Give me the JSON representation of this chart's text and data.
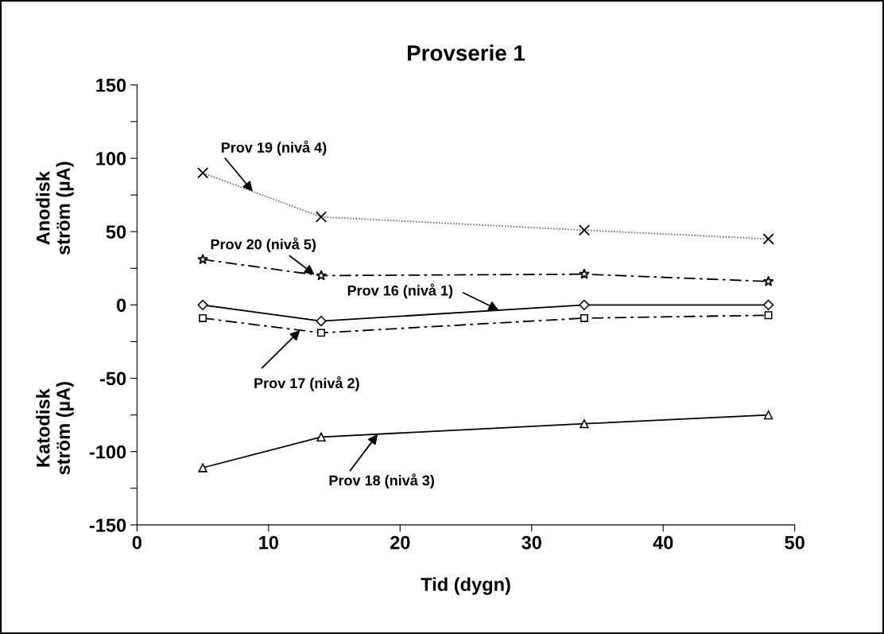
{
  "chart_data": {
    "type": "line",
    "title": "Provserie 1",
    "xlabel": "Tid (dygn)",
    "annotations": [
      "Anodisk\nström (µA)",
      "Katodisk\nström (µA)"
    ],
    "x": [
      5,
      14,
      34,
      48
    ],
    "series": [
      {
        "name": "Prov 16 (nivå 1)",
        "color": "#000000",
        "values": [
          0,
          -11,
          0,
          0
        ],
        "marker": "diamond",
        "line_style": "solid"
      },
      {
        "name": "Prov 17 (nivå 2)",
        "color": "#000000",
        "values": [
          -9,
          -19,
          -9,
          -7
        ],
        "marker": "square",
        "line_style": "dashed"
      },
      {
        "name": "Prov 18 (nivå 3)",
        "color": "#000000",
        "values": [
          -111,
          -90,
          -81,
          -75
        ],
        "marker": "triangle",
        "line_style": "solid"
      },
      {
        "name": "Prov 19 (nivå 4)",
        "color": "#000000",
        "values": [
          90,
          60,
          51,
          45
        ],
        "marker": "cross",
        "line_style": "dotted"
      },
      {
        "name": "Prov 20 (nivå 5)",
        "color": "#000000",
        "values": [
          31,
          20,
          21,
          16
        ],
        "marker": "star",
        "line_style": "dashed"
      }
    ],
    "xlim": [
      0,
      50
    ],
    "xticks": [
      0,
      10,
      20,
      30,
      40,
      50
    ],
    "ylim": [
      -150,
      150
    ],
    "yticks": [
      -150,
      {
        "value": -125,
        "label": null
      },
      -100,
      {
        "value": -75,
        "label": null
      },
      -50,
      {
        "value": -25,
        "label": null
      },
      0,
      {
        "value": 25,
        "label": null
      },
      50,
      {
        "value": 75,
        "label": null
      },
      100,
      {
        "value": 125,
        "label": null
      },
      150
    ],
    "grid": false,
    "legend": false
  }
}
